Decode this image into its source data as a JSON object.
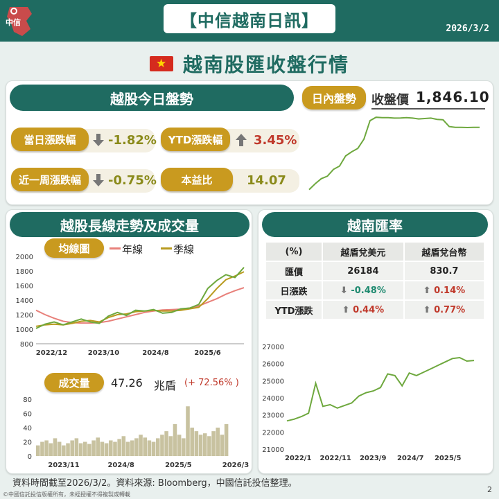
{
  "header": {
    "logo_text": "中信",
    "title": "【中信越南日訊】",
    "date": "2026/3/2"
  },
  "subtitle": "越南股匯收盤行情",
  "today": {
    "title": "越股今日盤勢",
    "intraday_label": "日內盤勢",
    "close_label": "收盤價",
    "close_value": "1,846.10",
    "daily_label": "當日漲跌幅",
    "daily_value": "-1.82%",
    "ytd_label": "YTD漲跌幅",
    "ytd_value": "3.45%",
    "week_label": "近一周漲跌幅",
    "week_value": "-0.75%",
    "pe_label": "本益比",
    "pe_value": "14.07",
    "colors": {
      "down": "#8a8a1a",
      "up": "#c0392b"
    }
  },
  "longterm": {
    "title": "越股長線走勢及成交量",
    "ma_label": "均線圖",
    "legend_year": "年線",
    "legend_quarter": "季線",
    "volume_label": "成交量",
    "volume_value": "47.26",
    "volume_unit": "兆盾",
    "volume_change": "(+ 72.56% )"
  },
  "fx": {
    "title": "越南匯率",
    "headers": [
      "(%)",
      "越盾兌美元",
      "越盾兌台幣"
    ],
    "row_rate": {
      "label": "匯價",
      "usd": "26184",
      "twd": "830.7"
    },
    "row_day": {
      "label": "日漲跌",
      "usd": "-0.48%",
      "twd": "0.14%"
    },
    "row_ytd": {
      "label": "YTD漲跌",
      "usd": "0.44%",
      "twd": "0.77%"
    }
  },
  "footer": "資料時間截至2026/3/2。資料來源: Bloomberg，中國信託投信整理。",
  "copyright": "©中國信託投信版權所有，未經授權不得複製或轉載",
  "page_number": "2",
  "chart_data": [
    {
      "type": "line",
      "title": "",
      "series": [
        {
          "values": [
            1020,
            1090,
            1150,
            1180,
            1260,
            1300,
            1420,
            1470,
            1510,
            1620,
            1840,
            1880,
            1875,
            1875,
            1870,
            1872,
            1875,
            1870,
            1860,
            1865,
            1870,
            1855,
            1850,
            1770,
            1760,
            1760,
            1758,
            1760,
            1760
          ]
        }
      ]
    },
    {
      "type": "line",
      "x_ticks": [
        "2022/12",
        "2023/10",
        "2024/8",
        "2025/6"
      ],
      "ylim": [
        800,
        2000
      ],
      "y_ticks": [
        800,
        1000,
        1200,
        1400,
        1600,
        1800,
        2000
      ],
      "series": [
        {
          "name": "年線",
          "color": "#e8807a",
          "values": [
            1260,
            1200,
            1150,
            1110,
            1090,
            1085,
            1085,
            1090,
            1110,
            1140,
            1170,
            1200,
            1230,
            1250,
            1265,
            1270,
            1275,
            1290,
            1320,
            1370,
            1420,
            1480,
            1530,
            1570
          ]
        },
        {
          "name": "季線",
          "color": "#b89a1e",
          "values": [
            1040,
            1060,
            1070,
            1060,
            1080,
            1110,
            1120,
            1100,
            1160,
            1200,
            1210,
            1240,
            1250,
            1260,
            1250,
            1250,
            1260,
            1280,
            1300,
            1420,
            1560,
            1680,
            1730,
            1790
          ]
        },
        {
          "name": "",
          "color": "#6ea83e",
          "values": [
            1010,
            1070,
            1100,
            1060,
            1100,
            1140,
            1100,
            1080,
            1180,
            1230,
            1190,
            1260,
            1250,
            1270,
            1220,
            1230,
            1280,
            1290,
            1340,
            1560,
            1670,
            1750,
            1710,
            1850
          ]
        }
      ]
    },
    {
      "type": "bar",
      "x_ticks": [
        "2023/11",
        "2024/8",
        "2025/5",
        "2026/3"
      ],
      "ylim": [
        0,
        80
      ],
      "y_ticks": [
        0,
        20,
        40,
        60,
        80
      ],
      "values": [
        15,
        20,
        22,
        18,
        25,
        20,
        15,
        18,
        22,
        25,
        18,
        20,
        17,
        22,
        26,
        20,
        18,
        22,
        20,
        24,
        28,
        20,
        22,
        25,
        30,
        26,
        22,
        20,
        25,
        30,
        35,
        28,
        45,
        30,
        25,
        70,
        40,
        35,
        30,
        32,
        28,
        35,
        40,
        30,
        45
      ]
    },
    {
      "type": "line",
      "x_ticks": [
        "2022/1",
        "2022/11",
        "2023/9",
        "2024/7",
        "2025/5"
      ],
      "ylim": [
        21000,
        27000
      ],
      "y_ticks": [
        21000,
        22000,
        23000,
        24000,
        25000,
        26000,
        27000
      ],
      "series": [
        {
          "color": "#6ea83e",
          "values": [
            22650,
            22750,
            22900,
            23100,
            24850,
            23500,
            23600,
            23400,
            23550,
            23700,
            24100,
            24300,
            24400,
            24600,
            25400,
            25300,
            24700,
            25450,
            25300,
            25500,
            25700,
            25900,
            26100,
            26300,
            26350,
            26150,
            26184
          ]
        }
      ]
    }
  ]
}
